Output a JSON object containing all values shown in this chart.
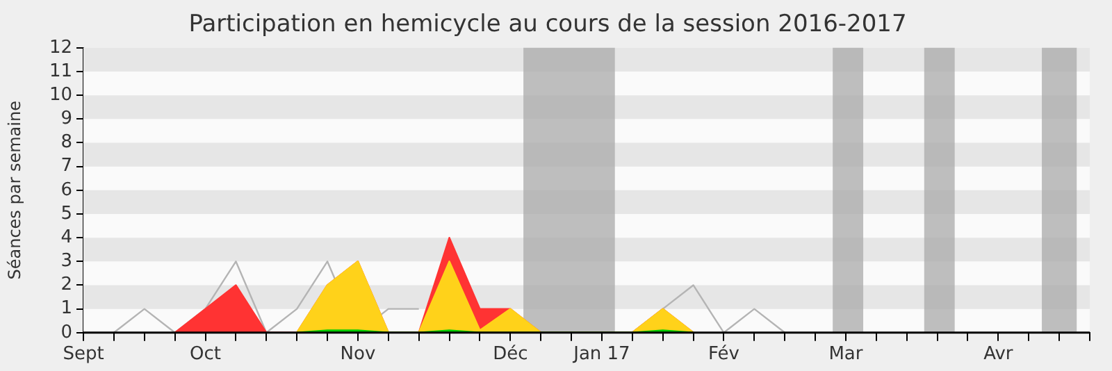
{
  "chart_data": {
    "type": "area",
    "title": "Participation en hemicycle au cours de la session 2016-2017",
    "ylabel": "Séances par semaine",
    "x": [
      "2016-09-15",
      "2016-09-22",
      "2016-09-29",
      "2016-10-06",
      "2016-10-13",
      "2016-10-20",
      "2016-10-27",
      "2016-11-03",
      "2016-11-10",
      "2016-11-17",
      "2016-11-24",
      "2016-12-01",
      "2016-12-08",
      "2016-12-15",
      "2016-12-22",
      "2017-01-12",
      "2017-01-19",
      "2017-01-26",
      "2017-02-02",
      "2017-02-09",
      "2017-02-16"
    ],
    "xlim": [
      "2016-09-08",
      "2017-04-27"
    ],
    "xticks": [
      {
        "value": "2016-09-08",
        "label": "Sept"
      },
      {
        "value": "2016-09-15",
        "label": null
      },
      {
        "value": "2016-09-22",
        "label": null
      },
      {
        "value": "2016-09-29",
        "label": null
      },
      {
        "value": "2016-10-06",
        "label": "Oct"
      },
      {
        "value": "2016-10-13",
        "label": null
      },
      {
        "value": "2016-10-20",
        "label": null
      },
      {
        "value": "2016-10-27",
        "label": null
      },
      {
        "value": "2016-11-03",
        "label": null
      },
      {
        "value": "2016-11-10",
        "label": "Nov"
      },
      {
        "value": "2016-11-17",
        "label": null
      },
      {
        "value": "2016-11-24",
        "label": null
      },
      {
        "value": "2016-12-01",
        "label": null
      },
      {
        "value": "2016-12-08",
        "label": null
      },
      {
        "value": "2016-12-15",
        "label": "Déc"
      },
      {
        "value": "2016-12-22",
        "label": null
      },
      {
        "value": "2016-12-29",
        "label": null
      },
      {
        "value": "2017-01-05",
        "label": "Jan 17"
      },
      {
        "value": "2017-01-12",
        "label": null
      },
      {
        "value": "2017-01-19",
        "label": null
      },
      {
        "value": "2017-01-26",
        "label": null
      },
      {
        "value": "2017-02-02",
        "label": "Fév"
      },
      {
        "value": "2017-02-09",
        "label": null
      },
      {
        "value": "2017-02-16",
        "label": null
      },
      {
        "value": "2017-02-23",
        "label": null
      },
      {
        "value": "2017-03-02",
        "label": "Mar"
      },
      {
        "value": "2017-03-09",
        "label": null
      },
      {
        "value": "2017-03-16",
        "label": null
      },
      {
        "value": "2017-03-23",
        "label": null
      },
      {
        "value": "2017-03-30",
        "label": null
      },
      {
        "value": "2017-04-06",
        "label": "Avr"
      },
      {
        "value": "2017-04-13",
        "label": null
      },
      {
        "value": "2017-04-20",
        "label": null
      },
      {
        "value": "2017-04-27",
        "label": null
      }
    ],
    "ylim": [
      0,
      12
    ],
    "yticks": [
      0,
      1,
      2,
      3,
      4,
      5,
      6,
      7,
      8,
      9,
      10,
      11,
      12
    ],
    "series": [
      {
        "type": "line",
        "color": "#b4b4b4",
        "values": [
          0,
          1,
          0,
          1,
          3,
          0,
          1,
          3,
          0,
          1,
          1,
          null,
          null,
          null,
          null,
          0,
          1,
          2,
          0,
          1,
          0
        ]
      },
      {
        "color": "#ff3333",
        "values": [
          null,
          null,
          0,
          1,
          2,
          0,
          0,
          2,
          3,
          0,
          0,
          4,
          1,
          1,
          0,
          0,
          1,
          0,
          null,
          null,
          null
        ]
      },
      {
        "color": "#ffd21a",
        "values": [
          null,
          null,
          null,
          null,
          null,
          null,
          0,
          2,
          3,
          0,
          0,
          3,
          0.1,
          1,
          0,
          0,
          1,
          0,
          null,
          null,
          null
        ]
      },
      {
        "color": "#00cc00",
        "values": [
          null,
          null,
          null,
          null,
          null,
          null,
          0,
          0.1,
          0.1,
          0,
          0,
          0.1,
          0,
          0,
          0,
          0,
          0.1,
          0,
          null,
          null,
          null
        ]
      }
    ],
    "bands": [
      {
        "axis": "x",
        "from": "2016-12-18",
        "to": "2017-01-08",
        "color": "#aaaaaa"
      },
      {
        "axis": "x",
        "from": "2017-02-27",
        "to": "2017-03-06",
        "color": "#aaaaaa"
      },
      {
        "axis": "x",
        "from": "2017-03-20",
        "to": "2017-03-27",
        "color": "#aaaaaa"
      },
      {
        "axis": "x",
        "from": "2017-04-16",
        "to": "2017-04-24",
        "color": "#aaaaaa"
      }
    ]
  }
}
